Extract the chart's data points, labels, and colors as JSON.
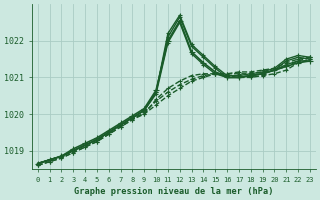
{
  "background_color": "#cce8e0",
  "grid_color": "#aaccc4",
  "line_color": "#1a5c2a",
  "text_color": "#1a5c2a",
  "xlabel": "Graphe pression niveau de la mer (hPa)",
  "ylim": [
    1018.5,
    1023.0
  ],
  "xlim": [
    -0.5,
    23.5
  ],
  "yticks": [
    1019,
    1020,
    1021,
    1022
  ],
  "xticks": [
    0,
    1,
    2,
    3,
    4,
    5,
    6,
    7,
    8,
    9,
    10,
    11,
    12,
    13,
    14,
    15,
    16,
    17,
    18,
    19,
    20,
    21,
    22,
    23
  ],
  "series": [
    {
      "y": [
        1018.65,
        1018.75,
        1018.85,
        1019.05,
        1019.2,
        1019.35,
        1019.55,
        1019.75,
        1019.95,
        1020.15,
        1020.65,
        1022.0,
        1022.55,
        1021.7,
        1021.4,
        1021.15,
        1021.0,
        1021.0,
        1021.05,
        1021.1,
        1021.2,
        1021.3,
        1021.4,
        1021.45
      ],
      "lw": 1.2,
      "ms": 4.0,
      "ls": "-"
    },
    {
      "y": [
        1018.65,
        1018.75,
        1018.85,
        1019.0,
        1019.15,
        1019.3,
        1019.5,
        1019.7,
        1019.9,
        1020.1,
        1020.6,
        1022.1,
        1022.65,
        1021.85,
        1021.55,
        1021.25,
        1021.0,
        1021.0,
        1021.05,
        1021.1,
        1021.2,
        1021.45,
        1021.55,
        1021.5
      ],
      "lw": 1.0,
      "ms": 3.5,
      "ls": "-"
    },
    {
      "y": [
        1018.65,
        1018.75,
        1018.85,
        1019.0,
        1019.15,
        1019.3,
        1019.5,
        1019.7,
        1019.9,
        1020.1,
        1020.6,
        1022.2,
        1022.7,
        1021.9,
        1021.6,
        1021.3,
        1021.05,
        1021.05,
        1021.1,
        1021.15,
        1021.25,
        1021.5,
        1021.6,
        1021.55
      ],
      "lw": 1.0,
      "ms": 3.5,
      "ls": "-"
    },
    {
      "y": [
        1018.65,
        1018.75,
        1018.85,
        1019.0,
        1019.15,
        1019.3,
        1019.5,
        1019.7,
        1019.9,
        1020.1,
        1020.55,
        1021.95,
        1022.5,
        1021.65,
        1021.35,
        1021.1,
        1021.0,
        1021.0,
        1021.05,
        1021.1,
        1021.2,
        1021.35,
        1021.45,
        1021.45
      ],
      "lw": 1.0,
      "ms": 3.5,
      "ls": "-"
    },
    {
      "y": [
        1018.65,
        1018.75,
        1018.85,
        1019.0,
        1019.15,
        1019.3,
        1019.5,
        1019.7,
        1019.9,
        1020.0,
        1020.4,
        1020.7,
        1020.9,
        1021.05,
        1021.1,
        1021.1,
        1021.05,
        1021.0,
        1021.0,
        1021.05,
        1021.1,
        1021.2,
        1021.4,
        1021.5
      ],
      "lw": 1.0,
      "ms": 3.0,
      "ls": "--"
    },
    {
      "y": [
        1018.6,
        1018.7,
        1018.8,
        1018.95,
        1019.1,
        1019.25,
        1019.45,
        1019.65,
        1019.85,
        1020.05,
        1020.35,
        1020.6,
        1020.8,
        1020.95,
        1021.05,
        1021.1,
        1021.1,
        1021.1,
        1021.1,
        1021.15,
        1021.2,
        1021.3,
        1021.45,
        1021.55
      ],
      "lw": 1.0,
      "ms": 3.0,
      "ls": "--"
    },
    {
      "y": [
        1018.6,
        1018.7,
        1018.8,
        1018.95,
        1019.1,
        1019.25,
        1019.45,
        1019.65,
        1019.85,
        1020.0,
        1020.25,
        1020.5,
        1020.7,
        1020.9,
        1021.0,
        1021.1,
        1021.1,
        1021.15,
        1021.15,
        1021.2,
        1021.25,
        1021.4,
        1021.5,
        1021.55
      ],
      "lw": 1.0,
      "ms": 3.0,
      "ls": "--"
    }
  ]
}
